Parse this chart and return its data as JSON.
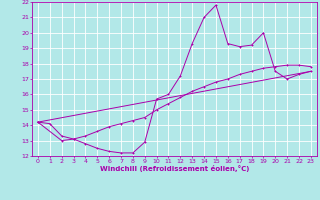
{
  "xlabel": "Windchill (Refroidissement éolien,°C)",
  "xlim": [
    -0.5,
    23.5
  ],
  "ylim": [
    12,
    22
  ],
  "xticks": [
    0,
    1,
    2,
    3,
    4,
    5,
    6,
    7,
    8,
    9,
    10,
    11,
    12,
    13,
    14,
    15,
    16,
    17,
    18,
    19,
    20,
    21,
    22,
    23
  ],
  "yticks": [
    12,
    13,
    14,
    15,
    16,
    17,
    18,
    19,
    20,
    21,
    22
  ],
  "bg_color": "#b2e8e8",
  "line_color": "#aa00aa",
  "grid_color": "#ffffff",
  "line1_x": [
    0,
    1,
    2,
    3,
    4,
    5,
    6,
    7,
    8,
    9,
    10,
    11,
    12,
    13,
    14,
    15,
    16,
    17,
    18,
    19,
    20,
    21,
    22,
    23
  ],
  "line1_y": [
    14.2,
    14.1,
    13.3,
    13.1,
    12.8,
    12.5,
    12.3,
    12.2,
    12.2,
    12.9,
    15.7,
    16.0,
    17.2,
    19.3,
    21.0,
    21.8,
    19.3,
    19.1,
    19.2,
    20.0,
    17.5,
    17.0,
    17.3,
    17.5
  ],
  "line2_x": [
    0,
    2,
    3,
    4,
    5,
    6,
    7,
    8,
    9,
    10,
    11,
    12,
    13,
    14,
    15,
    16,
    17,
    18,
    19,
    20,
    21,
    22,
    23
  ],
  "line2_y": [
    14.2,
    13.0,
    13.1,
    13.3,
    13.6,
    13.9,
    14.1,
    14.3,
    14.5,
    15.0,
    15.4,
    15.8,
    16.2,
    16.5,
    16.8,
    17.0,
    17.3,
    17.5,
    17.7,
    17.8,
    17.9,
    17.9,
    17.8
  ],
  "line3_x": [
    0,
    23
  ],
  "line3_y": [
    14.2,
    17.5
  ],
  "tick_fontsize": 4.5,
  "xlabel_fontsize": 5.0
}
